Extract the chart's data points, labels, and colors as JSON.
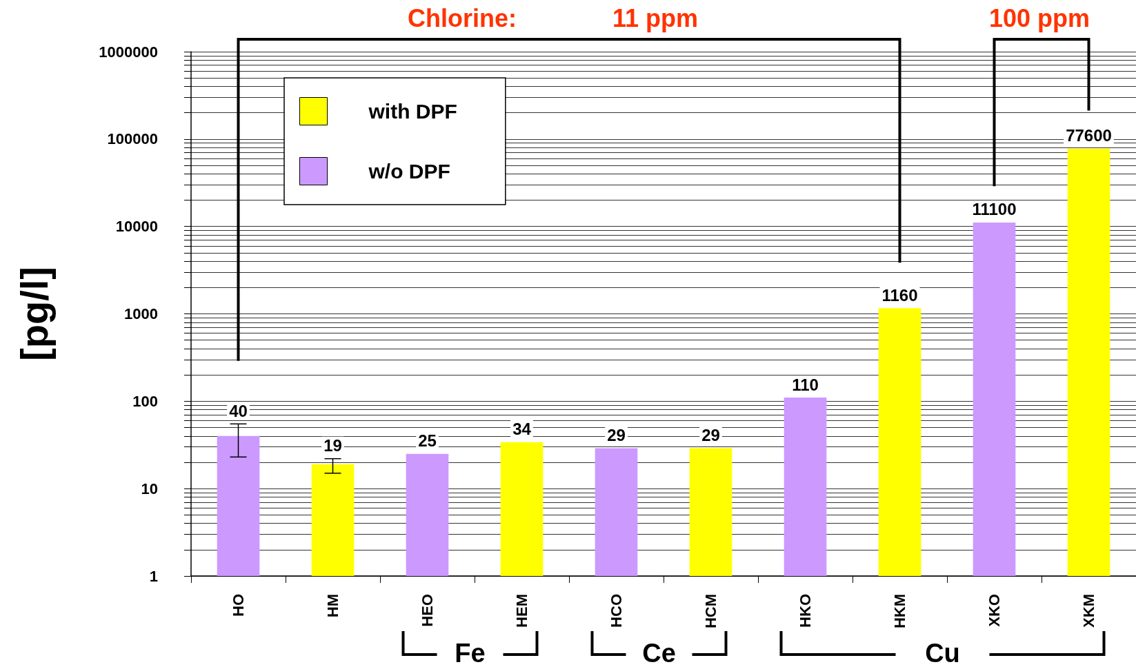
{
  "chart_data": {
    "type": "bar",
    "ylabel": "[pg/l]",
    "categories": [
      "HO",
      "HM",
      "HEO",
      "HEM",
      "HCO",
      "HCM",
      "HKO",
      "HKM",
      "XKO",
      "XKM"
    ],
    "series": [
      {
        "name": "with DPF",
        "color": "#ffff00",
        "values": [
          null,
          19,
          null,
          34,
          null,
          29,
          null,
          1160,
          null,
          77600
        ],
        "errors": [
          null,
          [
            15,
            22
          ],
          null,
          null,
          null,
          null,
          null,
          null,
          null,
          null
        ]
      },
      {
        "name": "w/o DPF",
        "color": "#cc99ff",
        "values": [
          40,
          null,
          25,
          null,
          29,
          null,
          110,
          null,
          11100,
          null
        ],
        "errors": [
          [
            23,
            55
          ],
          null,
          null,
          null,
          null,
          null,
          null,
          null,
          null,
          null
        ]
      }
    ],
    "log": true,
    "ylim": [
      1,
      1000000
    ],
    "yticks": [
      1,
      {
        "value": 2,
        "label": null
      },
      {
        "value": 3,
        "label": null
      },
      {
        "value": 4,
        "label": null
      },
      {
        "value": 5,
        "label": null
      },
      {
        "value": 6,
        "label": null
      },
      {
        "value": 7,
        "label": null
      },
      {
        "value": 8,
        "label": null
      },
      {
        "value": 9,
        "label": null
      },
      10,
      {
        "value": 20,
        "label": null
      },
      {
        "value": 30,
        "label": null
      },
      {
        "value": 40,
        "label": null
      },
      {
        "value": 50,
        "label": null
      },
      {
        "value": 60,
        "label": null
      },
      {
        "value": 70,
        "label": null
      },
      {
        "value": 80,
        "label": null
      },
      {
        "value": 90,
        "label": null
      },
      100,
      {
        "value": 200,
        "label": null
      },
      {
        "value": 300,
        "label": null
      },
      {
        "value": 400,
        "label": null
      },
      {
        "value": 500,
        "label": null
      },
      {
        "value": 600,
        "label": null
      },
      {
        "value": 700,
        "label": null
      },
      {
        "value": 800,
        "label": null
      },
      {
        "value": 900,
        "label": null
      },
      1000,
      {
        "value": 2000,
        "label": null
      },
      {
        "value": 3000,
        "label": null
      },
      {
        "value": 4000,
        "label": null
      },
      {
        "value": 5000,
        "label": null
      },
      {
        "value": 6000,
        "label": null
      },
      {
        "value": 7000,
        "label": null
      },
      {
        "value": 8000,
        "label": null
      },
      {
        "value": 9000,
        "label": null
      },
      10000,
      {
        "value": 20000,
        "label": null
      },
      {
        "value": 30000,
        "label": null
      },
      {
        "value": 40000,
        "label": null
      },
      {
        "value": 50000,
        "label": null
      },
      {
        "value": 60000,
        "label": null
      },
      {
        "value": 70000,
        "label": null
      },
      {
        "value": 80000,
        "label": null
      },
      {
        "value": 90000,
        "label": null
      },
      100000,
      {
        "value": 200000,
        "label": null
      },
      {
        "value": 300000,
        "label": null
      },
      {
        "value": 400000,
        "label": null
      },
      {
        "value": 500000,
        "label": null
      },
      {
        "value": 600000,
        "label": null
      },
      {
        "value": 700000,
        "label": null
      },
      {
        "value": 800000,
        "label": null
      },
      {
        "value": 900000,
        "label": null
      },
      1000000
    ],
    "grid": "y",
    "legend": "top left",
    "data_labels": true,
    "annotations": [
      "Chlorine:",
      "11 ppm",
      "100 ppm",
      "Fe",
      "Ce",
      "Cu"
    ]
  }
}
